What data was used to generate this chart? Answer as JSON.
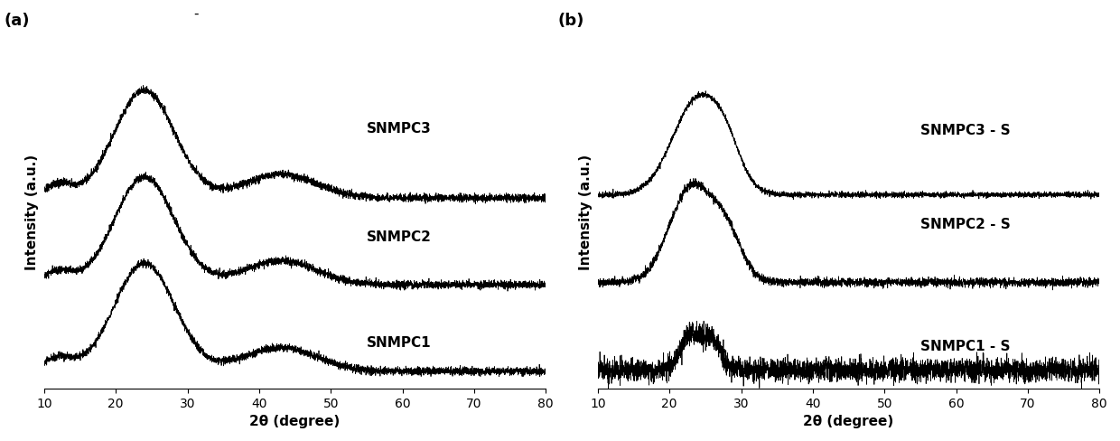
{
  "xlim": [
    10,
    80
  ],
  "xticks": [
    10,
    20,
    30,
    40,
    50,
    60,
    70,
    80
  ],
  "xlabel": "2θ (degree)",
  "ylabel": "Intensity (a.u.)",
  "panel_a_labels": [
    "SNMPC3",
    "SNMPC2",
    "SNMPC1"
  ],
  "panel_b_labels": [
    "SNMPC3 - S",
    "SNMPC2 - S",
    "SNMPC1 - S"
  ],
  "panel_a_tag": "(a)",
  "panel_b_tag": "(b)",
  "top_dash": "-",
  "bg_color": "#ffffff",
  "line_color": "#000000",
  "fontsize_label": 11,
  "fontsize_tag": 13,
  "fontsize_tick": 10
}
